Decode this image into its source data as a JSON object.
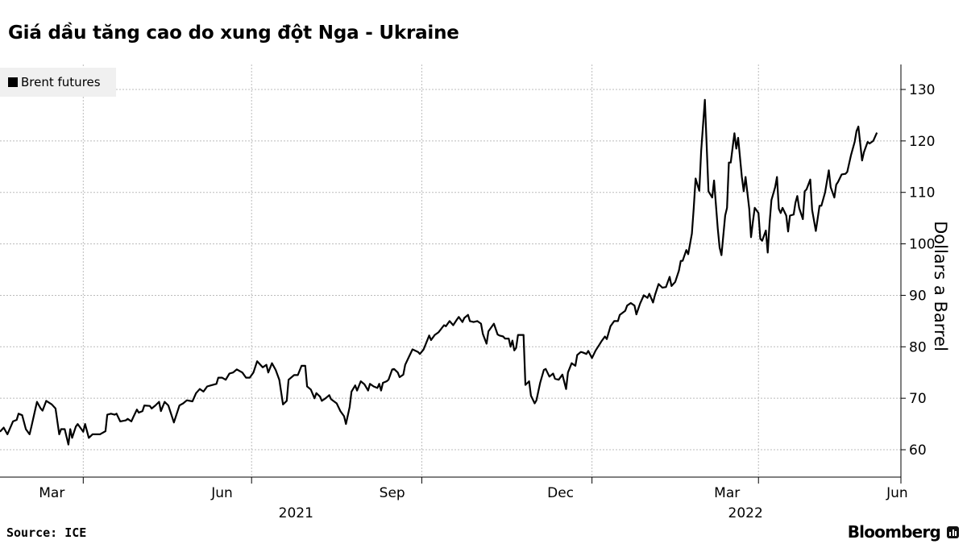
{
  "title": "Giá dầu tăng cao do xung đột Nga - Ukraine",
  "source": "Source: ICE",
  "brand": "Bloomberg",
  "chart_data": {
    "type": "line",
    "title": "Giá dầu tăng cao do xung đột Nga - Ukraine",
    "xlabel": "",
    "ylabel": "Dollars a Barrel",
    "x_unit": "days since 2021-02-15",
    "xlim": [
      0,
      487
    ],
    "ylim": [
      55,
      135
    ],
    "yticks": [
      60,
      70,
      80,
      90,
      100,
      110,
      120,
      130
    ],
    "x_gridlines_days": [
      45,
      136,
      228,
      320,
      410
    ],
    "x_ticklabels": [
      {
        "label": "Mar",
        "day": 28
      },
      {
        "label": "Jun",
        "day": 120
      },
      {
        "label": "Sep",
        "day": 212
      },
      {
        "label": "Dec",
        "day": 303
      },
      {
        "label": "Mar",
        "day": 393
      },
      {
        "label": "Jun",
        "day": 485
      }
    ],
    "year_labels": [
      {
        "label": "2021",
        "day": 160
      },
      {
        "label": "2022",
        "day": 403
      }
    ],
    "grid": true,
    "legend_position": "top-left",
    "series": [
      {
        "name": "Brent futures",
        "color": "#000000",
        "x_days": [
          0,
          2,
          4,
          7,
          9,
          10,
          12,
          14,
          16,
          17,
          20,
          22,
          23,
          25,
          28,
          30,
          32,
          33,
          35,
          37,
          38,
          39,
          41,
          42,
          44,
          45,
          46,
          48,
          50,
          52,
          54,
          57,
          58,
          60,
          62,
          63,
          65,
          68,
          69,
          71,
          72,
          74,
          75,
          77,
          78,
          81,
          82,
          84,
          86,
          87,
          89,
          91,
          94,
          97,
          99,
          101,
          104,
          106,
          108,
          110,
          112,
          114,
          117,
          118,
          120,
          122,
          124,
          126,
          128,
          131,
          133,
          135,
          137,
          139,
          142,
          144,
          145,
          147,
          149,
          151,
          153,
          155,
          156,
          159,
          161,
          163,
          165,
          166,
          168,
          170,
          171,
          173,
          174,
          176,
          178,
          179,
          182,
          184,
          186,
          187,
          189,
          190,
          192,
          193,
          195,
          197,
          199,
          200,
          202,
          204,
          205,
          206,
          207,
          209,
          210,
          212,
          213,
          215,
          216,
          218,
          219,
          221,
          223,
          226,
          227,
          229,
          232,
          233,
          235,
          237,
          240,
          241,
          243,
          245,
          247,
          248,
          250,
          251,
          253,
          254,
          256,
          258,
          260,
          261,
          263,
          264,
          267,
          269,
          270,
          272,
          273,
          275,
          276,
          277,
          278,
          279,
          280,
          283,
          284,
          286,
          287,
          289,
          290,
          292,
          294,
          295,
          297,
          299,
          300,
          302,
          304,
          306,
          307,
          309,
          311,
          312,
          314,
          315,
          317,
          318,
          320,
          322,
          324,
          325,
          327,
          328,
          330,
          332,
          334,
          335,
          338,
          339,
          341,
          343,
          344,
          346,
          348,
          350,
          351,
          353,
          354,
          356,
          358,
          360,
          362,
          363,
          365,
          367,
          368,
          369,
          371,
          372,
          374,
          375,
          376,
          378,
          379,
          380,
          381,
          383,
          385,
          386,
          388,
          389,
          390,
          392,
          393,
          394,
          395,
          397,
          398,
          399,
          401,
          402,
          403,
          405,
          406,
          407,
          408,
          410,
          411,
          412,
          414,
          415,
          416,
          417,
          419,
          420,
          421,
          422,
          423,
          425,
          426,
          427,
          429,
          430,
          431,
          432,
          434,
          435,
          436,
          438,
          439,
          441,
          443,
          444,
          446,
          448,
          449,
          451,
          452,
          453,
          455,
          457,
          458,
          460,
          462,
          463,
          464,
          466,
          467,
          469,
          470,
          472,
          474
        ],
        "y": [
          63.5,
          64.3,
          63,
          65.5,
          65.8,
          67,
          66.7,
          64,
          63,
          64.5,
          69.3,
          68,
          67.6,
          69.5,
          68.8,
          68,
          63,
          64,
          64,
          61,
          64,
          62.3,
          64.5,
          65,
          64,
          63.5,
          65,
          62.3,
          63,
          63,
          63,
          63.6,
          66.8,
          67,
          66.8,
          67,
          65.5,
          65.7,
          66,
          65.5,
          66.3,
          67.8,
          67.2,
          67.5,
          68.6,
          68.5,
          68,
          68.6,
          69.3,
          67.5,
          69.3,
          68.6,
          65.3,
          68.6,
          69,
          69.6,
          69.4,
          71,
          71.8,
          71.3,
          72.3,
          72.5,
          72.8,
          74,
          74,
          73.6,
          74.8,
          75,
          75.6,
          75,
          74,
          74,
          75,
          77.2,
          76,
          76.5,
          75,
          76.8,
          75.5,
          73.6,
          68.8,
          69.5,
          73.6,
          74.5,
          74.5,
          76.3,
          76.3,
          72.3,
          71.7,
          70,
          71,
          70.3,
          69.5,
          70,
          70.6,
          69.8,
          69,
          67.5,
          66.5,
          65,
          68.3,
          71.3,
          72.5,
          71.5,
          73.3,
          72.7,
          71.5,
          72.8,
          72.3,
          72,
          72.8,
          71.5,
          73,
          73.3,
          73.6,
          75.6,
          75.7,
          75,
          74.1,
          74.6,
          76.5,
          78,
          79.5,
          79,
          78.6,
          79.5,
          82.2,
          81.3,
          82.3,
          82.8,
          84.2,
          84,
          85,
          84.2,
          85.3,
          85.8,
          84.8,
          85.6,
          86.2,
          85,
          84.8,
          85,
          84.5,
          82.5,
          80.6,
          83,
          84.5,
          82.4,
          82.2,
          82,
          81.6,
          81.6,
          80,
          81.2,
          79.3,
          79.8,
          82.3,
          82.3,
          72.6,
          73.3,
          70.5,
          69,
          69.6,
          73,
          75.5,
          75.7,
          74.2,
          74.8,
          73.8,
          73.6,
          74.6,
          71.8,
          75,
          76.8,
          76.3,
          78.4,
          79,
          78.9,
          78.6,
          79.2,
          77.8,
          79.3,
          80.4,
          81,
          82,
          81.5,
          84,
          85,
          85,
          86.2,
          87,
          88,
          88.5,
          88,
          86.3,
          88.4,
          90,
          89.5,
          90.3,
          88.6,
          90,
          92.2,
          91.5,
          91.6,
          93.6,
          91.8,
          92.6,
          94.8,
          96.7,
          96.7,
          98.8,
          98,
          102,
          107,
          112.7,
          110.3,
          118,
          123,
          128,
          110.2,
          109,
          112.3,
          103,
          99.3,
          97.8,
          105.5,
          107,
          115.8,
          115.8,
          121.5,
          118.5,
          120.6,
          113,
          110.2,
          113,
          106.8,
          101.3,
          104.3,
          107,
          106,
          101,
          100.6,
          102.6,
          98.3,
          104,
          108.5,
          111,
          113,
          106.8,
          106,
          107,
          105.5,
          102.4,
          105.5,
          105.7,
          108,
          109.3,
          107,
          104.8,
          110.2,
          110.6,
          112.5,
          106.6,
          102.5,
          107.4,
          107.4,
          110,
          114.3,
          111,
          109,
          111.5,
          112,
          113.5,
          113.6,
          114,
          117.2,
          119.8,
          121.9,
          122.8,
          116.2,
          117.8,
          119.8,
          119.5,
          120,
          121.6
        ]
      }
    ]
  }
}
